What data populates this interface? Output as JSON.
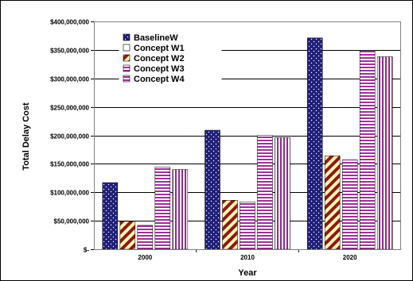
{
  "chart_data": {
    "type": "bar",
    "title": "",
    "xlabel": "Year",
    "ylabel": "Total Delay Cost",
    "categories": [
      "2000",
      "2010",
      "2020"
    ],
    "ylim": [
      0,
      400000000
    ],
    "yticks": [
      0,
      50000000,
      100000000,
      150000000,
      200000000,
      250000000,
      300000000,
      350000000,
      400000000
    ],
    "ytick_labels": [
      "$-",
      "$50,000,000",
      "$100,000,000",
      "$150,000,000",
      "$200,000,000",
      "$250,000,000",
      "$300,000,000",
      "$350,000,000",
      "$400,000,000"
    ],
    "grid": true,
    "legend_position": "top-left",
    "series": [
      {
        "name": "BaselineW",
        "values": [
          117000000,
          209000000,
          371000000
        ],
        "color": "#1f1f7a",
        "pattern": "dots-navy"
      },
      {
        "name": "Concept W1",
        "values": [
          0,
          0,
          0
        ],
        "color": "#ffffff",
        "pattern": "white"
      },
      {
        "name": "Concept W2",
        "values": [
          49000000,
          86000000,
          164000000
        ],
        "color": "#8b1a1a",
        "pattern": "diagonal-maroon-yellow"
      },
      {
        "name": "Concept W3",
        "values": [
          42000000,
          83000000,
          157000000
        ],
        "color": "#a0309a",
        "pattern": "horizontal-magenta"
      },
      {
        "name": "Concept W4",
        "values": [
          144000000,
          200000000,
          349000000
        ],
        "color": "#a0309a",
        "pattern": "horizontal-magenta"
      },
      {
        "name": "",
        "values": [
          140000000,
          196000000,
          338000000
        ],
        "color": "#8e2c8e",
        "pattern": "vertical-magenta"
      }
    ]
  }
}
